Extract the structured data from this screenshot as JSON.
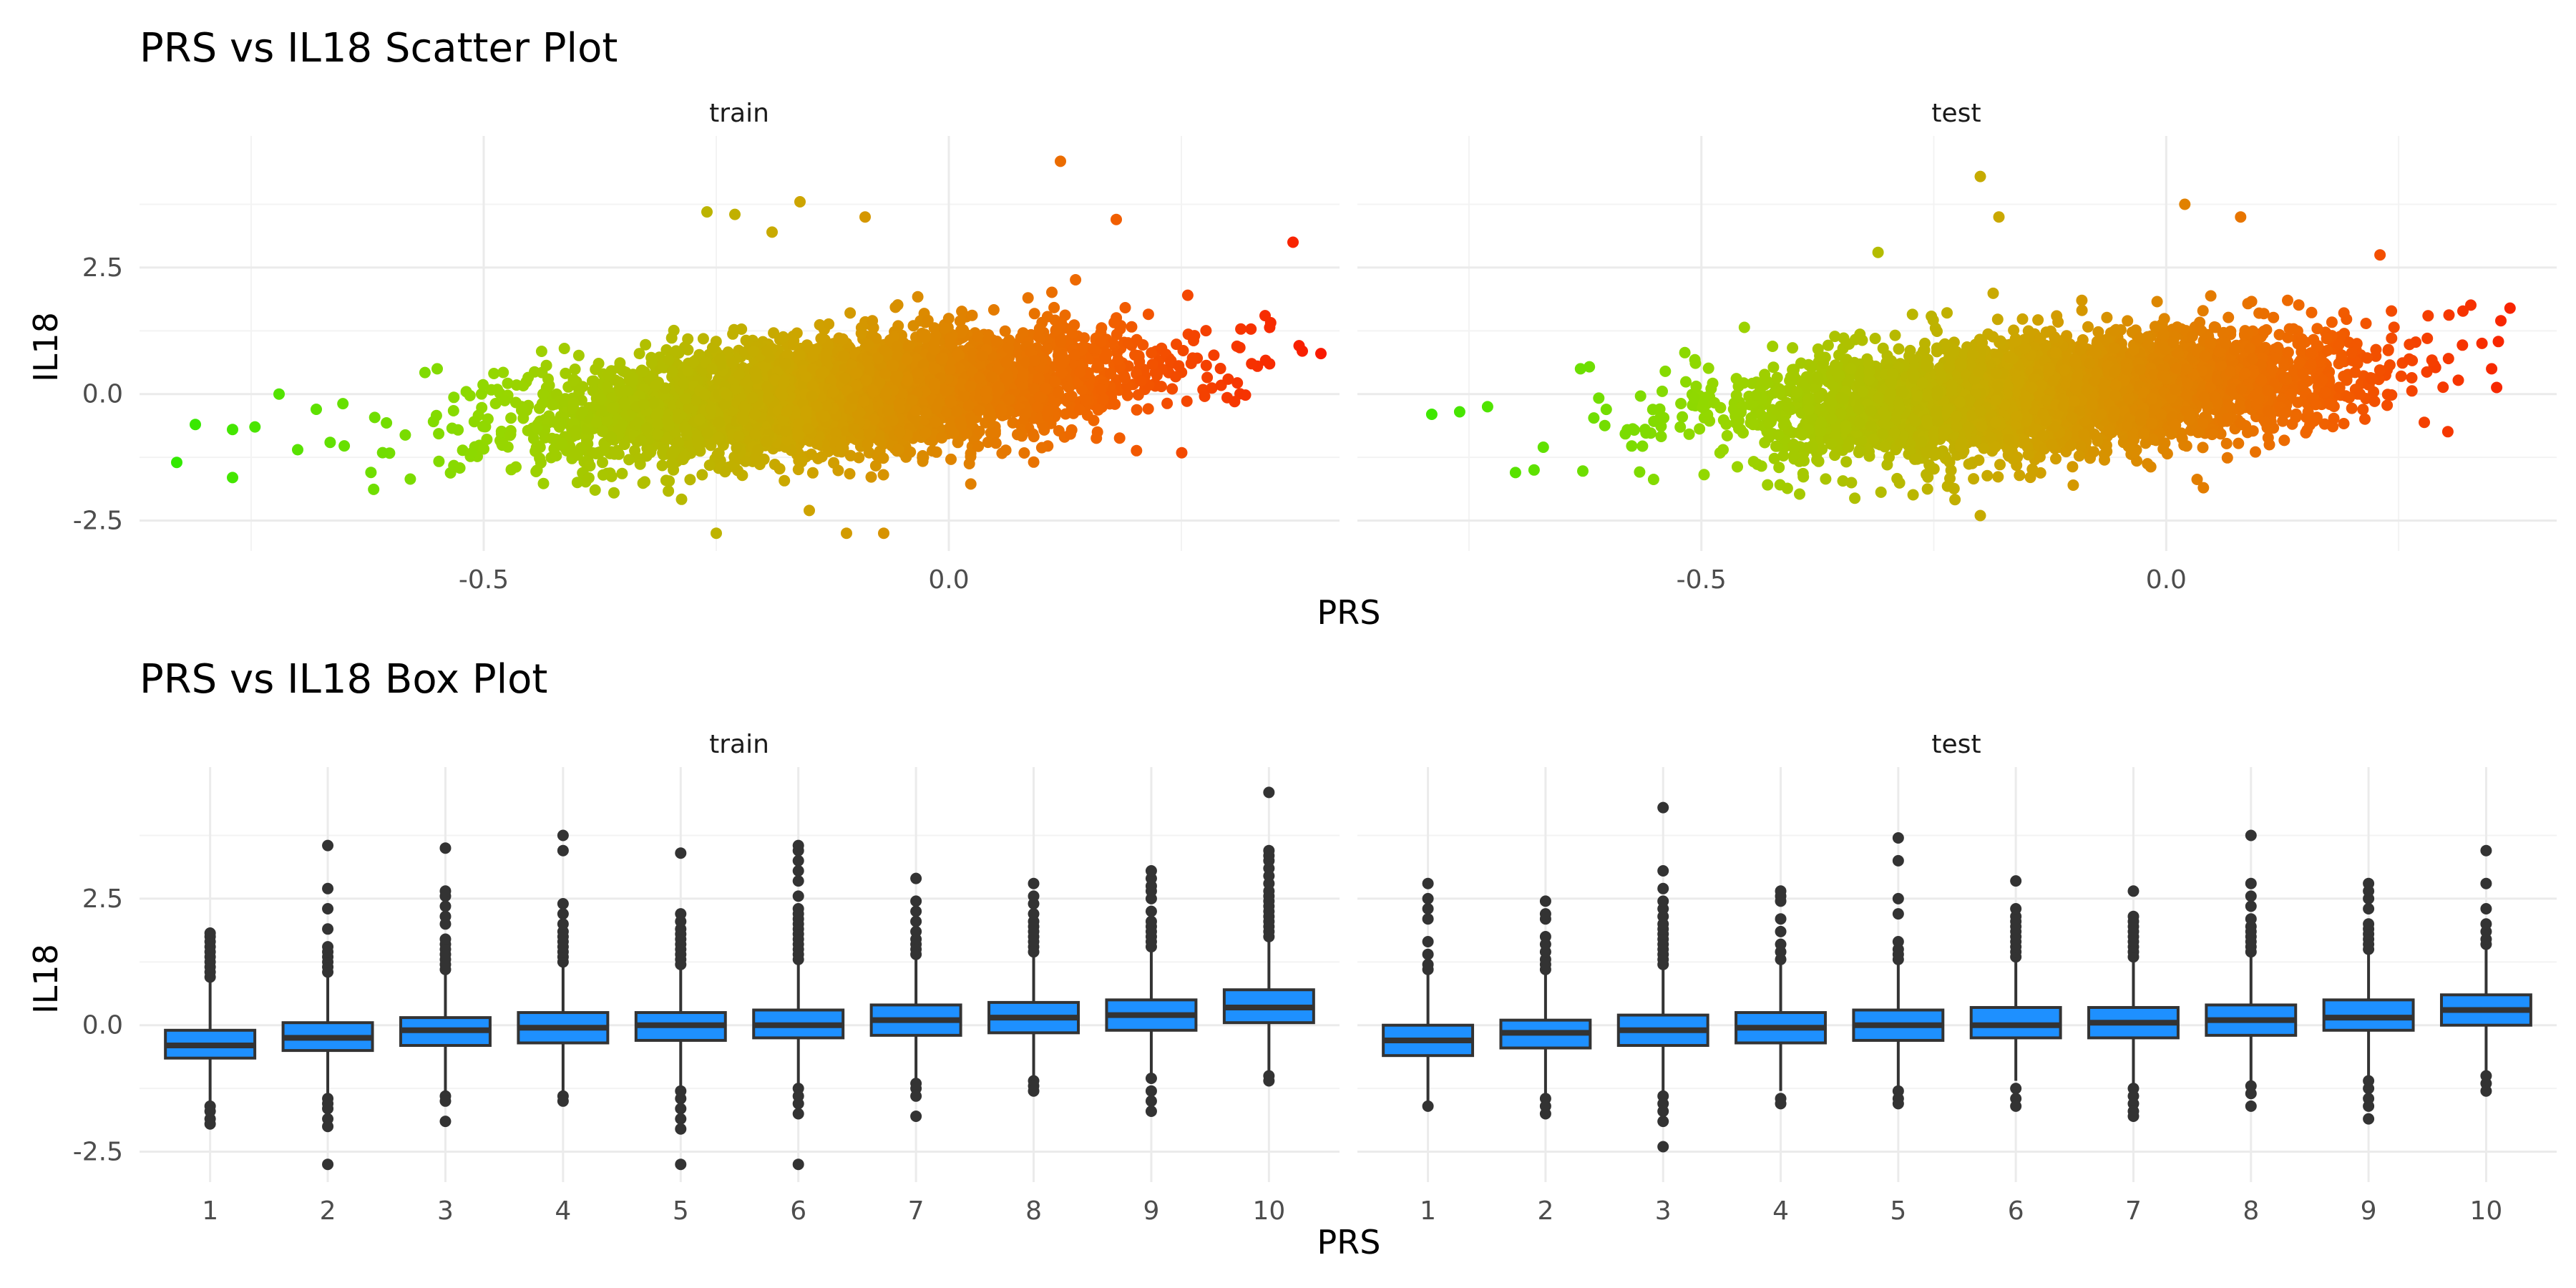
{
  "chart_data": [
    {
      "type": "scatter",
      "title": "PRS vs IL18 Scatter Plot",
      "xlabel": "PRS",
      "ylabel": "IL18",
      "xlim": [
        -0.87,
        0.42
      ],
      "ylim": [
        -3.1,
        5.1
      ],
      "x_ticks": [
        -0.5,
        0.0
      ],
      "y_ticks": [
        -2.5,
        0.0,
        2.5
      ],
      "grid": true,
      "color_scale": {
        "low": "#00ff00",
        "high": "#ff0000",
        "variable": "PRS"
      },
      "facets": [
        {
          "label": "train",
          "x_extent": [
            -0.85,
            0.4
          ],
          "slope": 1.45,
          "outliers": [
            {
              "x": -0.83,
              "y": -1.35
            },
            {
              "x": -0.81,
              "y": -0.6
            },
            {
              "x": -0.77,
              "y": -0.7
            },
            {
              "x": -0.77,
              "y": -1.65
            },
            {
              "x": -0.72,
              "y": 0.0
            },
            {
              "x": -0.7,
              "y": -1.1
            },
            {
              "x": -0.68,
              "y": -0.3
            },
            {
              "x": -0.55,
              "y": 0.5
            },
            {
              "x": -0.26,
              "y": 3.6
            },
            {
              "x": -0.23,
              "y": 3.55
            },
            {
              "x": -0.19,
              "y": 3.2
            },
            {
              "x": -0.16,
              "y": 3.8
            },
            {
              "x": -0.09,
              "y": 3.5
            },
            {
              "x": 0.12,
              "y": 4.6
            },
            {
              "x": 0.18,
              "y": 3.45
            },
            {
              "x": 0.37,
              "y": 3.0
            },
            {
              "x": 0.4,
              "y": 0.8
            },
            {
              "x": 0.38,
              "y": 0.85
            },
            {
              "x": -0.25,
              "y": -2.75
            },
            {
              "x": -0.11,
              "y": -2.75
            },
            {
              "x": -0.07,
              "y": -2.75
            },
            {
              "x": -0.15,
              "y": -2.3
            },
            {
              "x": -0.36,
              "y": -1.95
            },
            {
              "x": 0.34,
              "y": 1.55
            }
          ]
        },
        {
          "label": "test",
          "x_extent": [
            -0.8,
            0.37
          ],
          "slope": 1.3,
          "outliers": [
            {
              "x": -0.79,
              "y": -0.4
            },
            {
              "x": -0.76,
              "y": -0.35
            },
            {
              "x": -0.73,
              "y": -0.25
            },
            {
              "x": -0.7,
              "y": -1.55
            },
            {
              "x": -0.68,
              "y": -1.5
            },
            {
              "x": -0.67,
              "y": -1.05
            },
            {
              "x": -0.63,
              "y": 0.5
            },
            {
              "x": -0.31,
              "y": 2.8
            },
            {
              "x": -0.2,
              "y": 4.3
            },
            {
              "x": -0.18,
              "y": 3.5
            },
            {
              "x": 0.02,
              "y": 3.75
            },
            {
              "x": 0.08,
              "y": 3.5
            },
            {
              "x": 0.23,
              "y": 2.75
            },
            {
              "x": 0.36,
              "y": 1.45
            },
            {
              "x": 0.35,
              "y": 0.5
            },
            {
              "x": -0.2,
              "y": -2.4
            },
            {
              "x": -0.1,
              "y": -1.8
            },
            {
              "x": 0.04,
              "y": -1.85
            }
          ]
        }
      ]
    },
    {
      "type": "box",
      "title": "PRS vs IL18 Box Plot",
      "xlabel": "PRS",
      "ylabel": "IL18",
      "categories": [
        "1",
        "2",
        "3",
        "4",
        "5",
        "6",
        "7",
        "8",
        "9",
        "10"
      ],
      "ylim": [
        -3.1,
        5.1
      ],
      "y_ticks": [
        -2.5,
        0.0,
        2.5
      ],
      "fill": "#1e90ff",
      "facets": [
        {
          "label": "train",
          "boxes": [
            {
              "q1": -0.65,
              "median": -0.4,
              "q3": -0.1,
              "lo": -1.5,
              "hi": 0.85,
              "outHi": [
                0.95,
                1.05,
                1.15,
                1.25,
                1.35,
                1.45,
                1.55,
                1.65,
                1.75,
                1.82
              ],
              "outLo": [
                -1.6,
                -1.7,
                -1.85,
                -1.95
              ]
            },
            {
              "q1": -0.5,
              "median": -0.25,
              "q3": 0.05,
              "lo": -1.35,
              "hi": 0.95,
              "outHi": [
                1.05,
                1.15,
                1.25,
                1.35,
                1.45,
                1.55,
                1.9,
                2.3,
                2.7,
                3.55
              ],
              "outLo": [
                -1.45,
                -1.55,
                -1.65,
                -1.85,
                -2.0,
                -2.75
              ]
            },
            {
              "q1": -0.4,
              "median": -0.1,
              "q3": 0.15,
              "lo": -1.3,
              "hi": 1.0,
              "outHi": [
                1.1,
                1.2,
                1.3,
                1.4,
                1.5,
                1.6,
                1.7,
                2.0,
                2.15,
                2.35,
                2.55,
                2.65,
                3.5
              ],
              "outLo": [
                -1.4,
                -1.5,
                -1.9
              ]
            },
            {
              "q1": -0.35,
              "median": -0.05,
              "q3": 0.25,
              "lo": -1.3,
              "hi": 1.15,
              "outHi": [
                1.25,
                1.35,
                1.45,
                1.55,
                1.65,
                1.75,
                1.85,
                2.0,
                2.2,
                2.4,
                3.45,
                3.75
              ],
              "outLo": [
                -1.4,
                -1.5
              ]
            },
            {
              "q1": -0.3,
              "median": 0.0,
              "q3": 0.25,
              "lo": -1.2,
              "hi": 1.1,
              "outHi": [
                1.2,
                1.3,
                1.4,
                1.5,
                1.6,
                1.7,
                1.8,
                1.9,
                2.05,
                2.2,
                3.4
              ],
              "outLo": [
                -1.3,
                -1.45,
                -1.65,
                -1.85,
                -2.05,
                -2.75
              ]
            },
            {
              "q1": -0.25,
              "median": 0.0,
              "q3": 0.3,
              "lo": -1.15,
              "hi": 1.2,
              "outHi": [
                1.3,
                1.4,
                1.5,
                1.6,
                1.7,
                1.8,
                1.9,
                2.0,
                2.1,
                2.2,
                2.3,
                2.55,
                2.85,
                3.05,
                3.25,
                3.45,
                3.55
              ],
              "outLo": [
                -1.25,
                -1.4,
                -1.55,
                -1.75,
                -2.75
              ]
            },
            {
              "q1": -0.2,
              "median": 0.1,
              "q3": 0.4,
              "lo": -1.05,
              "hi": 1.3,
              "outHi": [
                1.4,
                1.5,
                1.6,
                1.7,
                1.85,
                2.05,
                2.25,
                2.45,
                2.9
              ],
              "outLo": [
                -1.15,
                -1.25,
                -1.4,
                -1.8
              ]
            },
            {
              "q1": -0.15,
              "median": 0.15,
              "q3": 0.45,
              "lo": -1.0,
              "hi": 1.35,
              "outHi": [
                1.45,
                1.55,
                1.65,
                1.75,
                1.85,
                1.95,
                2.05,
                2.2,
                2.4,
                2.55,
                2.8
              ],
              "outLo": [
                -1.1,
                -1.2,
                -1.3
              ]
            },
            {
              "q1": -0.1,
              "median": 0.2,
              "q3": 0.5,
              "lo": -0.95,
              "hi": 1.45,
              "outHi": [
                1.55,
                1.65,
                1.75,
                1.85,
                1.95,
                2.05,
                2.25,
                2.5,
                2.65,
                2.75,
                2.9,
                3.05
              ],
              "outLo": [
                -1.05,
                -1.3,
                -1.5,
                -1.7
              ]
            },
            {
              "q1": 0.05,
              "median": 0.35,
              "q3": 0.7,
              "lo": -0.9,
              "hi": 1.65,
              "outHi": [
                1.75,
                1.85,
                1.95,
                2.05,
                2.15,
                2.25,
                2.35,
                2.45,
                2.55,
                2.65,
                2.8,
                2.95,
                3.1,
                3.25,
                3.35,
                3.45,
                4.6
              ],
              "outLo": [
                -1.0,
                -1.1
              ]
            }
          ]
        },
        {
          "label": "test",
          "boxes": [
            {
              "q1": -0.6,
              "median": -0.3,
              "q3": 0.0,
              "lo": -1.5,
              "hi": 1.0,
              "outHi": [
                1.1,
                1.2,
                1.4,
                1.65,
                2.1,
                2.3,
                2.5,
                2.8
              ],
              "outLo": [
                -1.6
              ]
            },
            {
              "q1": -0.45,
              "median": -0.15,
              "q3": 0.1,
              "lo": -1.35,
              "hi": 1.0,
              "outHi": [
                1.1,
                1.2,
                1.3,
                1.45,
                1.6,
                1.75,
                2.1,
                2.2,
                2.45
              ],
              "outLo": [
                -1.45,
                -1.6,
                -1.75
              ]
            },
            {
              "q1": -0.4,
              "median": -0.1,
              "q3": 0.2,
              "lo": -1.3,
              "hi": 1.1,
              "outHi": [
                1.2,
                1.3,
                1.4,
                1.5,
                1.6,
                1.7,
                1.8,
                1.9,
                2.0,
                2.15,
                2.3,
                2.45,
                2.7,
                3.05,
                4.3
              ],
              "outLo": [
                -1.4,
                -1.55,
                -1.7,
                -1.9,
                -2.4
              ]
            },
            {
              "q1": -0.35,
              "median": -0.05,
              "q3": 0.25,
              "lo": -1.3,
              "hi": 1.2,
              "outHi": [
                1.3,
                1.45,
                1.6,
                1.85,
                2.1,
                2.45,
                2.55,
                2.65
              ],
              "outLo": [
                -1.45,
                -1.55
              ]
            },
            {
              "q1": -0.3,
              "median": 0.0,
              "q3": 0.3,
              "lo": -1.2,
              "hi": 1.2,
              "outHi": [
                1.3,
                1.4,
                1.5,
                1.65,
                2.2,
                2.5,
                3.25,
                3.7
              ],
              "outLo": [
                -1.3,
                -1.45,
                -1.55
              ]
            },
            {
              "q1": -0.25,
              "median": 0.0,
              "q3": 0.35,
              "lo": -1.1,
              "hi": 1.25,
              "outHi": [
                1.35,
                1.45,
                1.55,
                1.65,
                1.75,
                1.85,
                1.95,
                2.05,
                2.15,
                2.3,
                2.85
              ],
              "outLo": [
                -1.25,
                -1.45,
                -1.6
              ]
            },
            {
              "q1": -0.25,
              "median": 0.05,
              "q3": 0.35,
              "lo": -1.15,
              "hi": 1.25,
              "outHi": [
                1.35,
                1.45,
                1.55,
                1.65,
                1.75,
                1.85,
                1.95,
                2.05,
                2.15,
                2.65
              ],
              "outLo": [
                -1.25,
                -1.4,
                -1.55,
                -1.7,
                -1.8
              ]
            },
            {
              "q1": -0.2,
              "median": 0.1,
              "q3": 0.4,
              "lo": -1.1,
              "hi": 1.35,
              "outHi": [
                1.45,
                1.55,
                1.65,
                1.75,
                1.85,
                1.95,
                2.1,
                2.35,
                2.55,
                2.8,
                3.75
              ],
              "outLo": [
                -1.2,
                -1.35,
                -1.6
              ]
            },
            {
              "q1": -0.1,
              "median": 0.15,
              "q3": 0.5,
              "lo": -1.0,
              "hi": 1.4,
              "outHi": [
                1.5,
                1.6,
                1.7,
                1.8,
                1.9,
                2.0,
                2.3,
                2.5,
                2.65,
                2.8
              ],
              "outLo": [
                -1.1,
                -1.25,
                -1.45,
                -1.6,
                -1.85
              ]
            },
            {
              "q1": 0.0,
              "median": 0.3,
              "q3": 0.6,
              "lo": -0.9,
              "hi": 1.5,
              "outHi": [
                1.6,
                1.7,
                1.85,
                2.0,
                2.3,
                2.8,
                3.45
              ],
              "outLo": [
                -1.0,
                -1.15,
                -1.3
              ]
            }
          ]
        }
      ]
    }
  ]
}
